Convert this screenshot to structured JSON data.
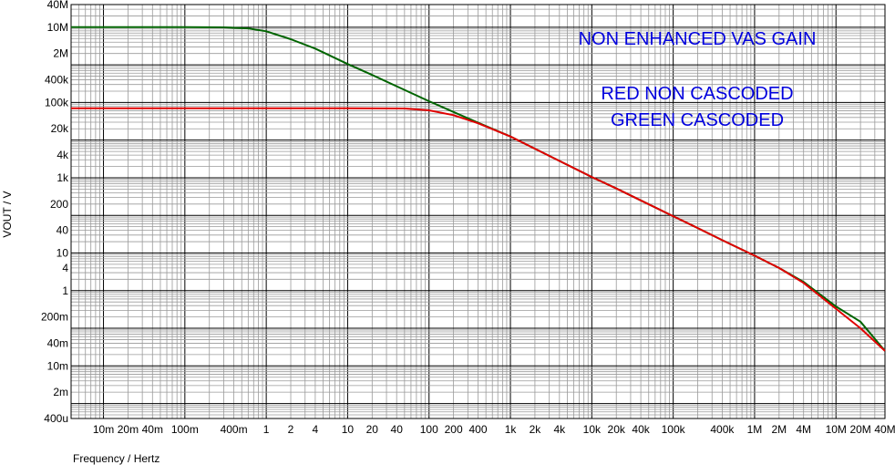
{
  "chart_data": {
    "type": "line",
    "title": "",
    "xlabel": "Frequency / Hertz",
    "ylabel": "VOUT / V",
    "x_scale": "log",
    "y_scale": "log",
    "xlim": [
      0.004,
      40000000
    ],
    "ylim": [
      0.0004,
      40000000
    ],
    "grid": true,
    "x_ticks": [
      {
        "value": 0.01,
        "label": "10m"
      },
      {
        "value": 0.02,
        "label": "20m"
      },
      {
        "value": 0.04,
        "label": "40m"
      },
      {
        "value": 0.1,
        "label": "100m"
      },
      {
        "value": 0.4,
        "label": "400m"
      },
      {
        "value": 1,
        "label": "1"
      },
      {
        "value": 2,
        "label": "2"
      },
      {
        "value": 4,
        "label": "4"
      },
      {
        "value": 10,
        "label": "10"
      },
      {
        "value": 20,
        "label": "20"
      },
      {
        "value": 40,
        "label": "40"
      },
      {
        "value": 100,
        "label": "100"
      },
      {
        "value": 200,
        "label": "200"
      },
      {
        "value": 400,
        "label": "400"
      },
      {
        "value": 1000,
        "label": "1k"
      },
      {
        "value": 2000,
        "label": "2k"
      },
      {
        "value": 4000,
        "label": "4k"
      },
      {
        "value": 10000,
        "label": "10k"
      },
      {
        "value": 20000,
        "label": "20k"
      },
      {
        "value": 40000,
        "label": "40k"
      },
      {
        "value": 100000,
        "label": "100k"
      },
      {
        "value": 400000,
        "label": "400k"
      },
      {
        "value": 1000000,
        "label": "1M"
      },
      {
        "value": 2000000,
        "label": "2M"
      },
      {
        "value": 4000000,
        "label": "4M"
      },
      {
        "value": 10000000,
        "label": "10M"
      },
      {
        "value": 20000000,
        "label": "20M"
      },
      {
        "value": 40000000,
        "label": "40M"
      }
    ],
    "y_ticks": [
      {
        "value": 0.0004,
        "label": "400u"
      },
      {
        "value": 0.002,
        "label": "2m"
      },
      {
        "value": 0.01,
        "label": "10m"
      },
      {
        "value": 0.04,
        "label": "40m"
      },
      {
        "value": 0.2,
        "label": "200m"
      },
      {
        "value": 1,
        "label": "1"
      },
      {
        "value": 4,
        "label": "4"
      },
      {
        "value": 10,
        "label": "10"
      },
      {
        "value": 40,
        "label": "40"
      },
      {
        "value": 200,
        "label": "200"
      },
      {
        "value": 1000,
        "label": "1k"
      },
      {
        "value": 4000,
        "label": "4k"
      },
      {
        "value": 20000,
        "label": "20k"
      },
      {
        "value": 100000,
        "label": "100k"
      },
      {
        "value": 400000,
        "label": "400k"
      },
      {
        "value": 2000000,
        "label": "2M"
      },
      {
        "value": 10000000,
        "label": "10M"
      },
      {
        "value": 40000000,
        "label": "40M"
      }
    ],
    "series": [
      {
        "color": "#006400",
        "points": [
          [
            0.004,
            10000000
          ],
          [
            0.1,
            10000000
          ],
          [
            0.3,
            9900000
          ],
          [
            0.6,
            9300000
          ],
          [
            1,
            7800000
          ],
          [
            2,
            4800000
          ],
          [
            4,
            2700000
          ],
          [
            10,
            1050000
          ],
          [
            20,
            540000
          ],
          [
            40,
            270000
          ],
          [
            100,
            108000
          ],
          [
            200,
            56000
          ],
          [
            400,
            29000
          ],
          [
            1000,
            12500
          ],
          [
            2000,
            5900
          ],
          [
            4000,
            2800
          ],
          [
            10000,
            1050
          ],
          [
            20000,
            520
          ],
          [
            40000,
            250
          ],
          [
            100000,
            95
          ],
          [
            200000,
            46
          ],
          [
            400000,
            22
          ],
          [
            1000000,
            8.5
          ],
          [
            2000000,
            4
          ],
          [
            4000000,
            1.7
          ],
          [
            10000000,
            0.38
          ],
          [
            20000000,
            0.15
          ],
          [
            40000000,
            0.025
          ]
        ]
      },
      {
        "color": "#e00000",
        "points": [
          [
            0.004,
            70000
          ],
          [
            10,
            70000
          ],
          [
            50,
            69000
          ],
          [
            100,
            62000
          ],
          [
            200,
            46000
          ],
          [
            400,
            28000
          ],
          [
            1000,
            12500
          ],
          [
            2000,
            5900
          ],
          [
            4000,
            2800
          ],
          [
            10000,
            1050
          ],
          [
            20000,
            520
          ],
          [
            40000,
            250
          ],
          [
            100000,
            95
          ],
          [
            200000,
            46
          ],
          [
            400000,
            22
          ],
          [
            1000000,
            8.5
          ],
          [
            2000000,
            4
          ],
          [
            4000000,
            1.6
          ],
          [
            10000000,
            0.33
          ],
          [
            20000000,
            0.1
          ],
          [
            40000000,
            0.025
          ]
        ]
      }
    ],
    "annotations": [
      {
        "text": "NON ENHANCED VAS GAIN",
        "color": "#0000dd"
      },
      {
        "text": "RED NON CASCODED",
        "color": "#0000dd"
      },
      {
        "text": "GREEN CASCODED",
        "color": "#0000dd"
      }
    ]
  }
}
